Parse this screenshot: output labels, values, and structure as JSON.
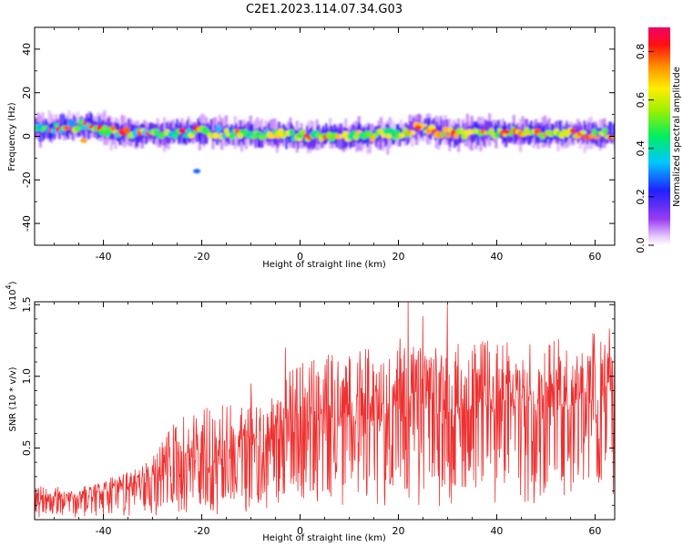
{
  "figure": {
    "title": "C2E1.2023.114.07.34.G03"
  },
  "chart_data": [
    {
      "type": "heatmap",
      "xlabel": "Height of straight line (km)",
      "ylabel": "Frequency (Hz)",
      "xlim": [
        -54,
        64
      ],
      "ylim": [
        -50,
        50
      ],
      "xticks": [
        -40,
        -20,
        0,
        20,
        40,
        60
      ],
      "xtick_labels": [
        "-40",
        "-20",
        "0",
        "20",
        "40",
        "60"
      ],
      "yticks": [
        -40,
        -20,
        0,
        20,
        40
      ],
      "ytick_labels": [
        "-40",
        "-20",
        "0",
        "20",
        "40"
      ],
      "colorbar": {
        "label": "Normalized spectral amplitude",
        "range": [
          0.0,
          0.9
        ],
        "ticks": [
          0.0,
          0.2,
          0.4,
          0.6,
          0.8
        ],
        "tick_labels": [
          "0.0",
          "0.2",
          "0.4",
          "0.6",
          "0.8"
        ],
        "colormap": "rainbow: white-lavender at 0, violet, blue, cyan, green, yellow, orange, red, magenta-pink at max"
      },
      "band_center_profile": [
        {
          "x": -54,
          "y": 3
        },
        {
          "x": -44,
          "y": 5
        },
        {
          "x": -38,
          "y": 2
        },
        {
          "x": -30,
          "y": 1
        },
        {
          "x": -20,
          "y": 2
        },
        {
          "x": -10,
          "y": 1
        },
        {
          "x": 0,
          "y": 0
        },
        {
          "x": 10,
          "y": 0
        },
        {
          "x": 20,
          "y": 1
        },
        {
          "x": 24,
          "y": 4
        },
        {
          "x": 30,
          "y": 1
        },
        {
          "x": 40,
          "y": 2
        },
        {
          "x": 50,
          "y": 1
        },
        {
          "x": 64,
          "y": 1
        }
      ],
      "features": [
        {
          "x": -21,
          "y": -16,
          "level": 0.3
        },
        {
          "x": -44,
          "y": -2,
          "level": 0.8
        },
        {
          "x": 0,
          "y": 0,
          "level": 0.5
        },
        {
          "x": 24,
          "y": 4,
          "level": 0.9
        },
        {
          "x": 42,
          "y": 2,
          "level": 0.9
        }
      ]
    },
    {
      "type": "line",
      "xlabel": "Height of straight line (km)",
      "ylabel": "SNR (10 * v/v)",
      "y_scale_label": "(x10",
      "y_scale_exp": "4",
      "y_scale_close": ")",
      "xlim": [
        -54,
        64
      ],
      "ylim": [
        0,
        1.52
      ],
      "xticks": [
        -40,
        -20,
        0,
        20,
        40,
        60
      ],
      "xtick_labels": [
        "-40",
        "-20",
        "0",
        "20",
        "40",
        "60"
      ],
      "yticks": [
        0.5,
        1.0,
        1.5
      ],
      "ytick_labels": [
        "0.5",
        "1.0",
        "1.5"
      ],
      "series": [
        {
          "color": "#ee3030",
          "envelope": [
            {
              "x": -54,
              "mean": 0.1,
              "peak": 0.25
            },
            {
              "x": -45,
              "mean": 0.13,
              "peak": 0.22
            },
            {
              "x": -35,
              "mean": 0.2,
              "peak": 0.32
            },
            {
              "x": -30,
              "mean": 0.25,
              "peak": 0.45
            },
            {
              "x": -25,
              "mean": 0.3,
              "peak": 0.72
            },
            {
              "x": -15,
              "mean": 0.38,
              "peak": 0.82
            },
            {
              "x": -5,
              "mean": 0.48,
              "peak": 0.85
            },
            {
              "x": 0,
              "mean": 0.55,
              "peak": 1.2
            },
            {
              "x": 10,
              "mean": 0.62,
              "peak": 1.15
            },
            {
              "x": 20,
              "mean": 0.68,
              "peak": 1.3
            },
            {
              "x": 30,
              "mean": 0.72,
              "peak": 1.1
            },
            {
              "x": 40,
              "mean": 0.75,
              "peak": 1.05
            },
            {
              "x": 50,
              "mean": 0.78,
              "peak": 1.05
            },
            {
              "x": 64,
              "mean": 0.8,
              "peak": 1.2
            }
          ],
          "spikes": [
            {
              "x": -10,
              "y": 0.95
            },
            {
              "x": -3,
              "y": 1.2
            },
            {
              "x": 22,
              "y": 1.52
            },
            {
              "x": 25,
              "y": 1.42
            },
            {
              "x": 30,
              "y": 1.5
            },
            {
              "x": 62,
              "y": 1.22
            }
          ]
        }
      ]
    }
  ]
}
